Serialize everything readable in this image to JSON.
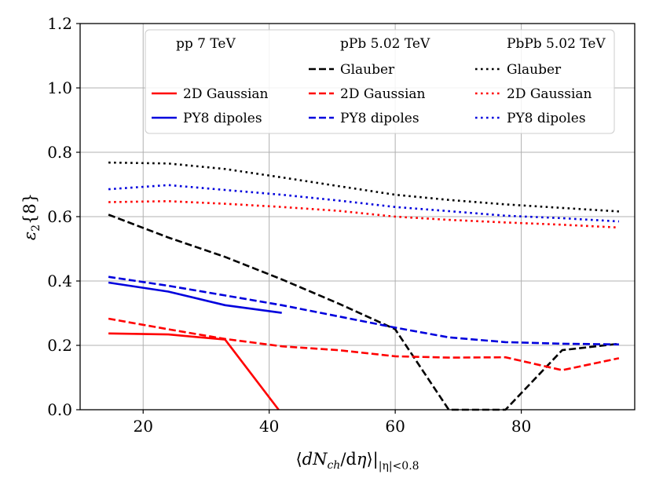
{
  "chart_data": {
    "type": "line",
    "title": "",
    "xlabel": "⟨dN_ch/dη⟩|_{|η|<0.8}",
    "xlabel_parts": {
      "open": "⟨",
      "num": "dN",
      "sub1": "ch",
      "mid": "/d",
      "eta": "η",
      "close": "⟩|",
      "sub2": "|η|<0.8"
    },
    "ylabel": "ε₂{8}",
    "ylabel_parts": {
      "eps": "ε",
      "sub": "2",
      "rest": "{8}"
    },
    "xlim": [
      10,
      98
    ],
    "ylim": [
      0.0,
      1.2
    ],
    "xticks": [
      20,
      40,
      60,
      80
    ],
    "xtick_labels": [
      "20",
      "40",
      "60",
      "80"
    ],
    "yticks": [
      0.0,
      0.2,
      0.4,
      0.6,
      0.8,
      1.0,
      1.2
    ],
    "ytick_labels": [
      "0.0",
      "0.2",
      "0.4",
      "0.6",
      "0.8",
      "1.0",
      "1.2"
    ],
    "grid": true,
    "legend": {
      "placement": "top-right",
      "columns": [
        {
          "header": "pp 7 TeV",
          "entries": [
            "",
            "2D Gaussian",
            "PY8 dipoles"
          ]
        },
        {
          "header": "pPb 5.02 TeV",
          "entries": [
            "Glauber",
            "2D Gaussian",
            "PY8 dipoles"
          ]
        },
        {
          "header": "PbPb 5.02 TeV",
          "entries": [
            "Glauber",
            "2D Gaussian",
            "PY8 dipoles"
          ]
        }
      ]
    },
    "colors": {
      "glauber": "#000000",
      "gaussian": "#ff0000",
      "dipoles": "#0000dd"
    },
    "series": [
      {
        "name": "pp 7 TeV 2D Gaussian",
        "system": "pp",
        "model": "gaussian",
        "style": "solid",
        "x": [
          14.5,
          24,
          33,
          41.5
        ],
        "y": [
          0.237,
          0.234,
          0.218,
          0.0
        ]
      },
      {
        "name": "pp 7 TeV PY8 dipoles",
        "system": "pp",
        "model": "dipoles",
        "style": "solid",
        "x": [
          14.5,
          24,
          33,
          42
        ],
        "y": [
          0.395,
          0.367,
          0.325,
          0.301
        ]
      },
      {
        "name": "pPb 5.02 TeV Glauber",
        "system": "pPb",
        "model": "glauber",
        "style": "dashed",
        "x": [
          14.5,
          24,
          33,
          42,
          51,
          60,
          68.5,
          77.5,
          86.5,
          95.5
        ],
        "y": [
          0.606,
          0.535,
          0.475,
          0.405,
          0.33,
          0.25,
          0.0,
          0.0,
          0.185,
          0.205
        ]
      },
      {
        "name": "pPb 5.02 TeV 2D Gaussian",
        "system": "pPb",
        "model": "gaussian",
        "style": "dashed",
        "x": [
          14.5,
          24,
          33,
          42,
          51,
          60,
          68.5,
          77.5,
          86.5,
          95.5
        ],
        "y": [
          0.283,
          0.25,
          0.22,
          0.197,
          0.185,
          0.166,
          0.162,
          0.163,
          0.123,
          0.16
        ]
      },
      {
        "name": "pPb 5.02 TeV PY8 dipoles",
        "system": "pPb",
        "model": "dipoles",
        "style": "dashed",
        "x": [
          14.5,
          24,
          33,
          42,
          51,
          60,
          68.5,
          77.5,
          86.5,
          95.5
        ],
        "y": [
          0.413,
          0.385,
          0.355,
          0.325,
          0.29,
          0.255,
          0.225,
          0.21,
          0.205,
          0.203
        ]
      },
      {
        "name": "PbPb 5.02 TeV Glauber",
        "system": "PbPb",
        "model": "glauber",
        "style": "dotted",
        "x": [
          14.5,
          24,
          33,
          42,
          51,
          60,
          68.5,
          77.5,
          86.5,
          95.5
        ],
        "y": [
          0.768,
          0.765,
          0.748,
          0.722,
          0.695,
          0.668,
          0.652,
          0.638,
          0.627,
          0.616
        ]
      },
      {
        "name": "PbPb 5.02 TeV 2D Gaussian",
        "system": "PbPb",
        "model": "gaussian",
        "style": "dotted",
        "x": [
          14.5,
          24,
          33,
          42,
          51,
          60,
          68.5,
          77.5,
          86.5,
          95.5
        ],
        "y": [
          0.645,
          0.648,
          0.64,
          0.63,
          0.618,
          0.6,
          0.59,
          0.582,
          0.575,
          0.566
        ]
      },
      {
        "name": "PbPb 5.02 TeV PY8 dipoles",
        "system": "PbPb",
        "model": "dipoles",
        "style": "dotted",
        "x": [
          14.5,
          24,
          33,
          42,
          51,
          60,
          68.5,
          77.5,
          86.5,
          95.5
        ],
        "y": [
          0.685,
          0.698,
          0.683,
          0.668,
          0.65,
          0.63,
          0.617,
          0.603,
          0.595,
          0.585
        ]
      }
    ]
  }
}
